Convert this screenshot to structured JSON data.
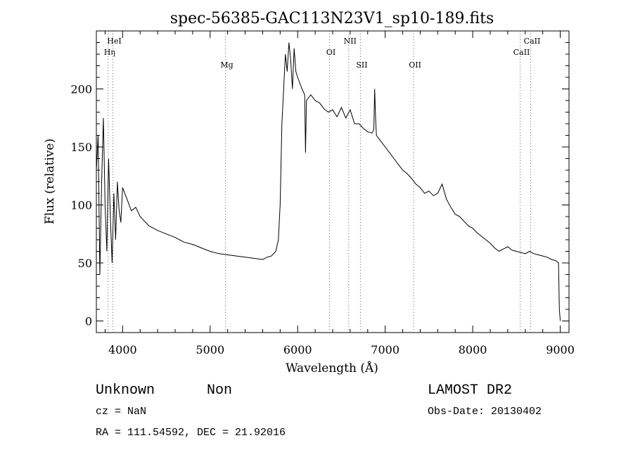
{
  "chart_data": {
    "type": "line",
    "title": "spec-56385-GAC113N23V1_sp10-189.fits",
    "xlabel": "Wavelength (Å)",
    "ylabel": "Flux (relative)",
    "xlim": [
      3700,
      9100
    ],
    "ylim": [
      -10,
      250
    ],
    "xticks": [
      4000,
      5000,
      6000,
      7000,
      8000,
      9000
    ],
    "yticks": [
      0,
      50,
      100,
      150,
      200
    ],
    "grid": false,
    "series": [
      {
        "x": [
          3700,
          3720,
          3740,
          3760,
          3780,
          3800,
          3820,
          3840,
          3860,
          3880,
          3900,
          3920,
          3940,
          3960,
          3980,
          4000,
          4050,
          4100,
          4150,
          4200,
          4300,
          4400,
          4500,
          4600,
          4700,
          4800,
          4900,
          5000,
          5100,
          5200,
          5300,
          5400,
          5500,
          5600,
          5650,
          5700,
          5750,
          5780,
          5800,
          5820,
          5840,
          5860,
          5880,
          5900,
          5920,
          5940,
          5960,
          5980,
          6000,
          6050,
          6080,
          6090,
          6100,
          6150,
          6200,
          6250,
          6300,
          6350,
          6400,
          6450,
          6500,
          6550,
          6600,
          6650,
          6700,
          6750,
          6800,
          6850,
          6870,
          6880,
          6890,
          6900,
          6950,
          7000,
          7050,
          7100,
          7150,
          7200,
          7250,
          7300,
          7350,
          7400,
          7450,
          7500,
          7550,
          7600,
          7650,
          7700,
          7750,
          7800,
          7850,
          7900,
          7950,
          8000,
          8050,
          8100,
          8150,
          8200,
          8250,
          8300,
          8350,
          8400,
          8450,
          8500,
          8550,
          8600,
          8650,
          8700,
          8750,
          8800,
          8850,
          8900,
          8950,
          8980,
          8990,
          9000
        ],
        "values": [
          130,
          160,
          40,
          120,
          175,
          100,
          60,
          140,
          90,
          50,
          110,
          70,
          120,
          95,
          85,
          115,
          105,
          95,
          98,
          90,
          82,
          78,
          75,
          72,
          68,
          66,
          63,
          60,
          58,
          57,
          56,
          55,
          54,
          53,
          55,
          56,
          60,
          70,
          100,
          170,
          200,
          230,
          215,
          240,
          225,
          200,
          235,
          215,
          210,
          200,
          195,
          145,
          190,
          195,
          190,
          188,
          183,
          180,
          182,
          176,
          184,
          175,
          182,
          170,
          170,
          166,
          163,
          162,
          165,
          200,
          175,
          160,
          155,
          150,
          145,
          140,
          135,
          130,
          127,
          123,
          118,
          115,
          110,
          112,
          108,
          110,
          118,
          105,
          98,
          92,
          90,
          86,
          82,
          80,
          76,
          73,
          70,
          67,
          63,
          60,
          62,
          64,
          61,
          60,
          59,
          58,
          60,
          58,
          57,
          56,
          55,
          53,
          52,
          50,
          10,
          0
        ]
      }
    ],
    "lines": [
      {
        "label": "HeI",
        "x": 3889
      },
      {
        "label": "Hη",
        "x": 3835
      },
      {
        "label": "Mg",
        "x": 5175
      },
      {
        "label": "NII",
        "x": 6583
      },
      {
        "label": "OI",
        "x": 6364
      },
      {
        "label": "SII",
        "x": 6717
      },
      {
        "label": "OII",
        "x": 7325
      },
      {
        "label": "CaII",
        "x": 8662
      },
      {
        "label": "CaII",
        "x": 8542
      }
    ]
  },
  "footer": {
    "class_label": "Unknown",
    "subclass_label": "Non",
    "survey": "LAMOST DR2",
    "cz": "cz = NaN",
    "obs_date": "Obs-Date: 20130402",
    "coords": "RA = 111.54592, DEC =  21.92016"
  }
}
